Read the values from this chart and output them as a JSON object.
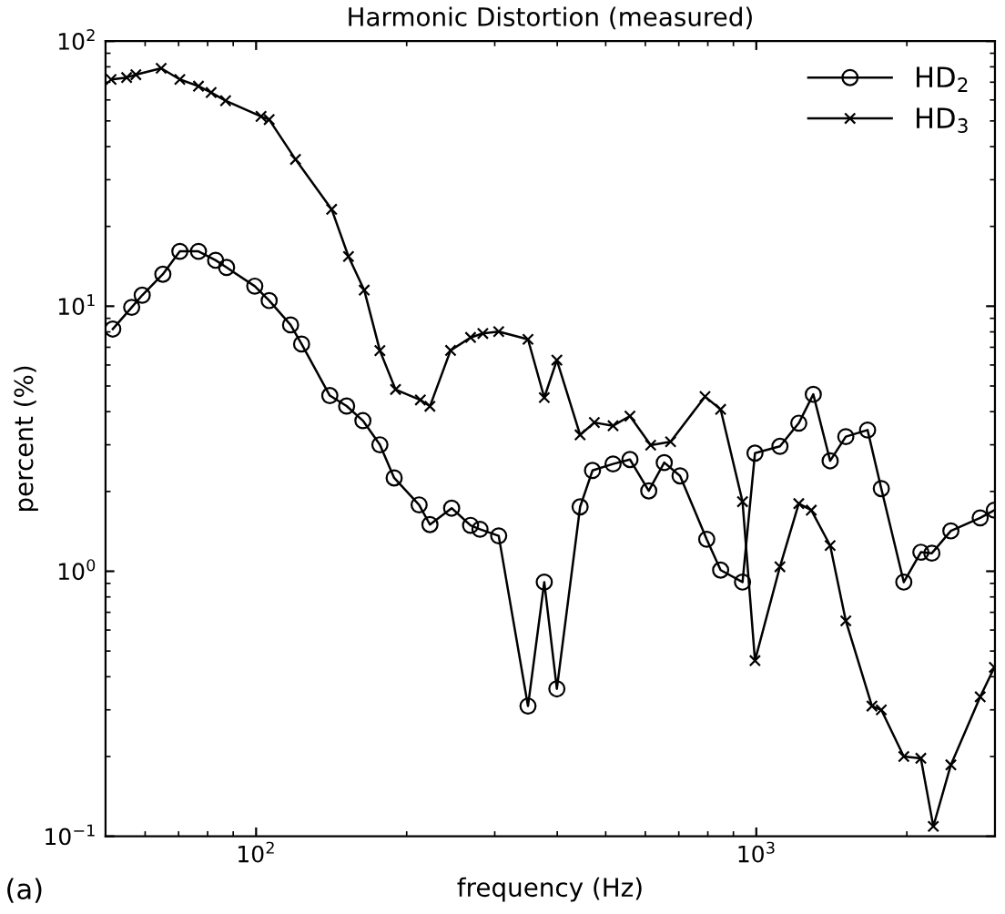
{
  "chart_data": {
    "type": "line",
    "title": "Harmonic Distortion (measured)",
    "xlabel": "frequency (Hz)",
    "ylabel": "percent (%)",
    "annotations": [
      "(a)"
    ],
    "log": "xy",
    "grid": false,
    "legend": "top right",
    "line_style": "solid",
    "xlim": [
      50,
      3000
    ],
    "ylim": [
      0.1,
      100
    ],
    "xticks": [
      {
        "value": 100,
        "label": "10$^{2}$"
      },
      {
        "value": 1000,
        "label": "10$^{3}$"
      }
    ],
    "yticks": [
      {
        "value": 0.1,
        "label": "10$^{−1}$"
      },
      {
        "value": 1,
        "label": "10$^{0}$"
      },
      {
        "value": 10,
        "label": "10$^{1}$"
      },
      {
        "value": 100,
        "label": "10$^{2}$"
      }
    ],
    "series": [
      {
        "name": "HD$_{2}$",
        "color": "#000000",
        "marker": "circle",
        "x": [
          51.7,
          56.4,
          59.2,
          65.1,
          70.4,
          76.7,
          83,
          87.3,
          99.4,
          106.2,
          117.2,
          123.3,
          140.4,
          151.7,
          163.5,
          176.8,
          188.8,
          211.8,
          222.6,
          246,
          268.4,
          280.3,
          305.5,
          349.6,
          376.8,
          399.3,
          444.4,
          470.5,
          517.2,
          559,
          609.5,
          654.6,
          704,
          796,
          848.6,
          938.6,
          994,
          1115,
          1216,
          1300,
          1405,
          1510,
          1669,
          1778,
          1972,
          2133,
          2244,
          2449,
          2803,
          2992
        ],
        "values": [
          8.2,
          9.9,
          11,
          13.2,
          16.1,
          16.1,
          14.9,
          14,
          11.9,
          10.5,
          8.5,
          7.2,
          4.6,
          4.2,
          3.7,
          3,
          2.25,
          1.78,
          1.5,
          1.73,
          1.49,
          1.44,
          1.36,
          0.31,
          0.91,
          0.36,
          1.75,
          2.4,
          2.54,
          2.64,
          2.01,
          2.57,
          2.29,
          1.32,
          1.01,
          0.91,
          2.79,
          2.96,
          3.62,
          4.65,
          2.61,
          3.22,
          3.41,
          2.05,
          0.91,
          1.18,
          1.17,
          1.42,
          1.59,
          1.7
        ]
      },
      {
        "name": "HD$_{3}$",
        "color": "#000000",
        "marker": "cross",
        "x": [
          51.3,
          55.1,
          57.5,
          64.6,
          70.4,
          76.7,
          81.3,
          86.9,
          102.3,
          106.2,
          119.9,
          141.6,
          153,
          164.5,
          176.8,
          190,
          213,
          222.6,
          244.8,
          268.4,
          284,
          305.5,
          349.6,
          376.8,
          399.3,
          444.4,
          474.5,
          517.2,
          559,
          615,
          674,
          789.8,
          848.6,
          938.6,
          994,
          1115,
          1216,
          1288,
          1405,
          1510,
          1703,
          1778,
          1972,
          2133,
          2259,
          2449,
          2803,
          2992
        ],
        "values": [
          71.7,
          72.9,
          74.7,
          79,
          71.7,
          67.6,
          64,
          59.6,
          52,
          50.6,
          35.8,
          23.2,
          15.4,
          11.5,
          6.8,
          4.85,
          4.43,
          4.19,
          6.81,
          7.62,
          7.89,
          8.02,
          7.5,
          4.52,
          6.26,
          3.27,
          3.64,
          3.54,
          3.85,
          2.99,
          3.08,
          4.56,
          4.08,
          1.83,
          0.46,
          1.04,
          1.8,
          1.7,
          1.25,
          0.65,
          0.31,
          0.3,
          0.2,
          0.197,
          0.109,
          0.186,
          0.336,
          0.434
        ]
      }
    ]
  }
}
